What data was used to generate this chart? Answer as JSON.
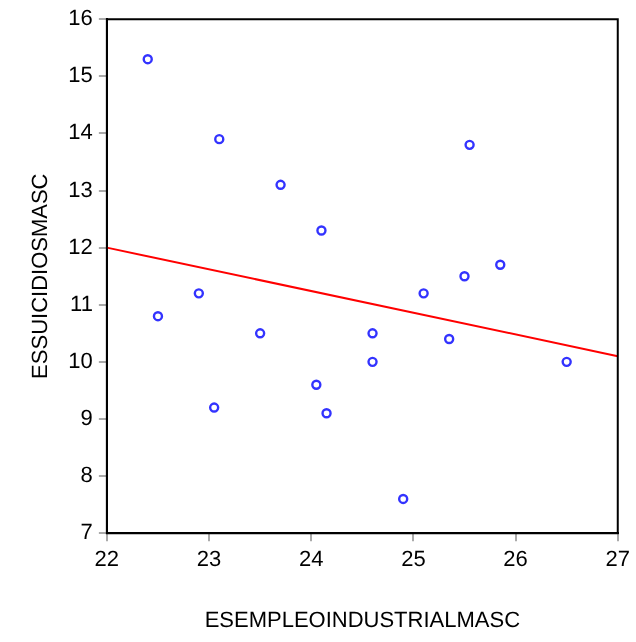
{
  "chart_data": {
    "type": "scatter",
    "xlabel": "ESEMPLEOINDUSTRIALMASC",
    "ylabel": "ESSUICIDIOSMASC",
    "xlim": [
      22,
      27
    ],
    "xticks": [
      22,
      23,
      24,
      25,
      26,
      27
    ],
    "ylim": [
      7,
      16
    ],
    "yticks": [
      7,
      8,
      9,
      10,
      11,
      12,
      13,
      14,
      15,
      16
    ],
    "grid": false,
    "legend": false,
    "marker": "circle",
    "series": [
      {
        "color": "#3333ff",
        "x": [
          22.4,
          22.5,
          22.9,
          23.1,
          23.05,
          23.7,
          23.5,
          24.1,
          24.05,
          24.15,
          24.6,
          24.6,
          25.1,
          25.35,
          25.5,
          25.55,
          25.85,
          26.5,
          24.9
        ],
        "values": [
          15.3,
          10.8,
          11.2,
          13.9,
          9.2,
          13.1,
          10.5,
          12.3,
          9.6,
          9.1,
          10.5,
          10.0,
          11.2,
          10.4,
          11.5,
          13.8,
          11.7,
          10.0,
          7.6
        ]
      },
      {
        "type": "line",
        "color": "#ff0000",
        "x": [
          22,
          27
        ],
        "values": [
          12.0,
          10.1
        ],
        "marker": "none"
      }
    ]
  }
}
